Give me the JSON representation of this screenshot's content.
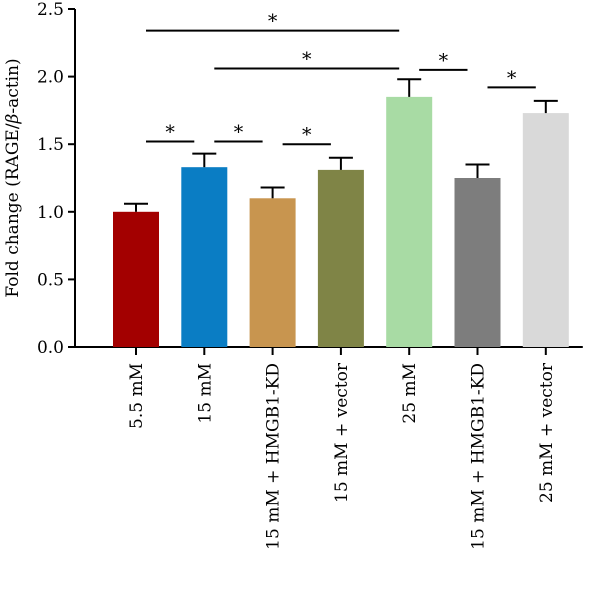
{
  "chart_data": {
    "type": "bar",
    "title": "",
    "xlabel": "",
    "ylabel": "Fold change (RAGE/β-actin)",
    "ylabel_prefix": "Fold change (RAGE/",
    "ylabel_beta": "β",
    "ylabel_suffix": "-actin)",
    "ylim": [
      0,
      2.5
    ],
    "yticks": [
      0.0,
      0.5,
      1.0,
      1.5,
      2.0,
      2.5
    ],
    "ytick_labels": [
      "0.0",
      "0.5",
      "1.0",
      "1.5",
      "2.0",
      "2.5"
    ],
    "grid": false,
    "legend": "none",
    "categories": [
      "5.5 mM",
      "15 mM",
      "15 mM + HMGB1-KD",
      "15 mM + vector",
      "25 mM",
      "15 mM + HMGB1-KD",
      "25 mM + vector"
    ],
    "values": [
      1.0,
      1.33,
      1.1,
      1.31,
      1.85,
      1.25,
      1.73
    ],
    "errors": [
      0.06,
      0.1,
      0.08,
      0.09,
      0.13,
      0.1,
      0.09
    ],
    "colors": [
      "#a30000",
      "#0a7dc4",
      "#c8954f",
      "#7f8446",
      "#a8dba4",
      "#7d7d7d",
      "#d9d9d9"
    ],
    "significance": [
      {
        "from": 0,
        "to": 1,
        "level": 1.52,
        "label": "*"
      },
      {
        "from": 1,
        "to": 2,
        "level": 1.52,
        "label": "*"
      },
      {
        "from": 2,
        "to": 3,
        "level": 1.5,
        "label": "*"
      },
      {
        "from": 4,
        "to": 5,
        "level": 2.05,
        "label": "*"
      },
      {
        "from": 5,
        "to": 6,
        "level": 1.92,
        "label": "*"
      },
      {
        "from": 1,
        "to": 4,
        "level": 2.06,
        "label": "*"
      },
      {
        "from": 0,
        "to": 4,
        "level": 2.34,
        "label": "*"
      }
    ]
  }
}
